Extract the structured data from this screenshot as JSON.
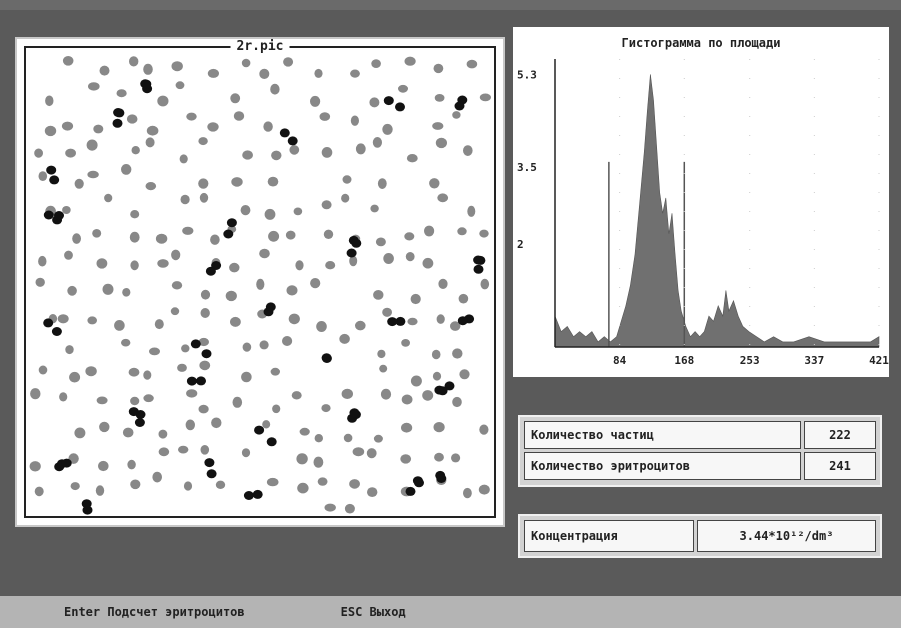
{
  "image_panel": {
    "title": "2r.pic"
  },
  "histogram": {
    "title": "Гистограмма по площади"
  },
  "chart_data": {
    "type": "area",
    "title": "Гистограмма по площади",
    "xlabel": "",
    "ylabel": "",
    "x_ticks": [
      84,
      168,
      253,
      337,
      421
    ],
    "y_ticks": [
      2,
      3.5,
      5.3
    ],
    "xlim": [
      0,
      421
    ],
    "ylim": [
      0,
      5.6
    ],
    "threshold_lines": [
      70,
      168
    ],
    "series": [
      {
        "x": [
          0,
          8,
          16,
          24,
          32,
          40,
          48,
          56,
          64,
          72,
          80,
          86,
          92,
          98,
          104,
          110,
          116,
          120,
          124,
          128,
          132,
          136,
          140,
          144,
          148,
          152,
          156,
          160,
          164,
          170,
          176,
          182,
          188,
          194,
          200,
          206,
          212,
          218,
          222,
          226,
          232,
          238,
          244,
          252,
          262,
          272,
          284,
          296,
          310,
          330,
          350,
          370,
          390,
          410,
          421
        ],
        "values": [
          0.6,
          0.3,
          0.4,
          0.2,
          0.3,
          0.2,
          0.3,
          0.1,
          0.2,
          0.1,
          0.2,
          0.5,
          0.8,
          1.2,
          1.8,
          2.8,
          3.8,
          4.6,
          5.3,
          4.8,
          3.9,
          3.0,
          2.6,
          2.9,
          2.2,
          2.6,
          1.8,
          1.1,
          0.7,
          0.4,
          0.2,
          0.3,
          0.2,
          0.3,
          0.6,
          0.5,
          0.8,
          0.6,
          1.1,
          0.7,
          0.9,
          0.6,
          0.4,
          0.3,
          0.2,
          0.1,
          0.2,
          0.1,
          0.1,
          0.2,
          0.1,
          0.1,
          0.1,
          0.1,
          0.2
        ]
      }
    ]
  },
  "info": {
    "rows": [
      {
        "label": "Количество частиц",
        "value": "222"
      },
      {
        "label": "Количество эритроцитов",
        "value": "241"
      }
    ]
  },
  "concentration": {
    "label": "Концентрация",
    "value": "3.44*10¹²/dm³"
  },
  "status_bar": {
    "enter_label": "Enter Подсчет эритроцитов",
    "esc_label": "ESC Выход"
  },
  "colors": {
    "background": "#5a5a5a",
    "cell_gray": "#888888",
    "cell_black": "#111111",
    "histogram_fill": "#707070",
    "status_bar": "#b4b4b4"
  }
}
